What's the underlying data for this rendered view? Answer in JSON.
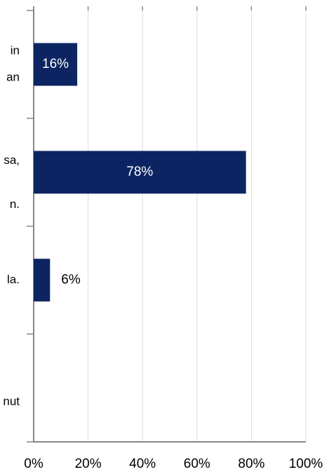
{
  "chart_data": {
    "type": "bar",
    "orientation": "horizontal",
    "categories": [
      [
        "in",
        "an"
      ],
      [
        "sa,",
        "n."
      ],
      [
        "la."
      ],
      [
        "nut"
      ]
    ],
    "values": [
      16,
      78,
      6,
      null
    ],
    "value_labels": [
      "16%",
      "78%",
      "6%",
      null
    ],
    "color": "#0c2461",
    "xlim": [
      0,
      100
    ],
    "xticks": [
      {
        "value": 0,
        "label": "0%"
      },
      {
        "value": 20,
        "label": "20%"
      },
      {
        "value": 40,
        "label": "40%"
      },
      {
        "value": 60,
        "label": "60%"
      },
      {
        "value": 80,
        "label": "80%"
      },
      {
        "value": 100,
        "label": "100%"
      }
    ],
    "grid": true
  }
}
